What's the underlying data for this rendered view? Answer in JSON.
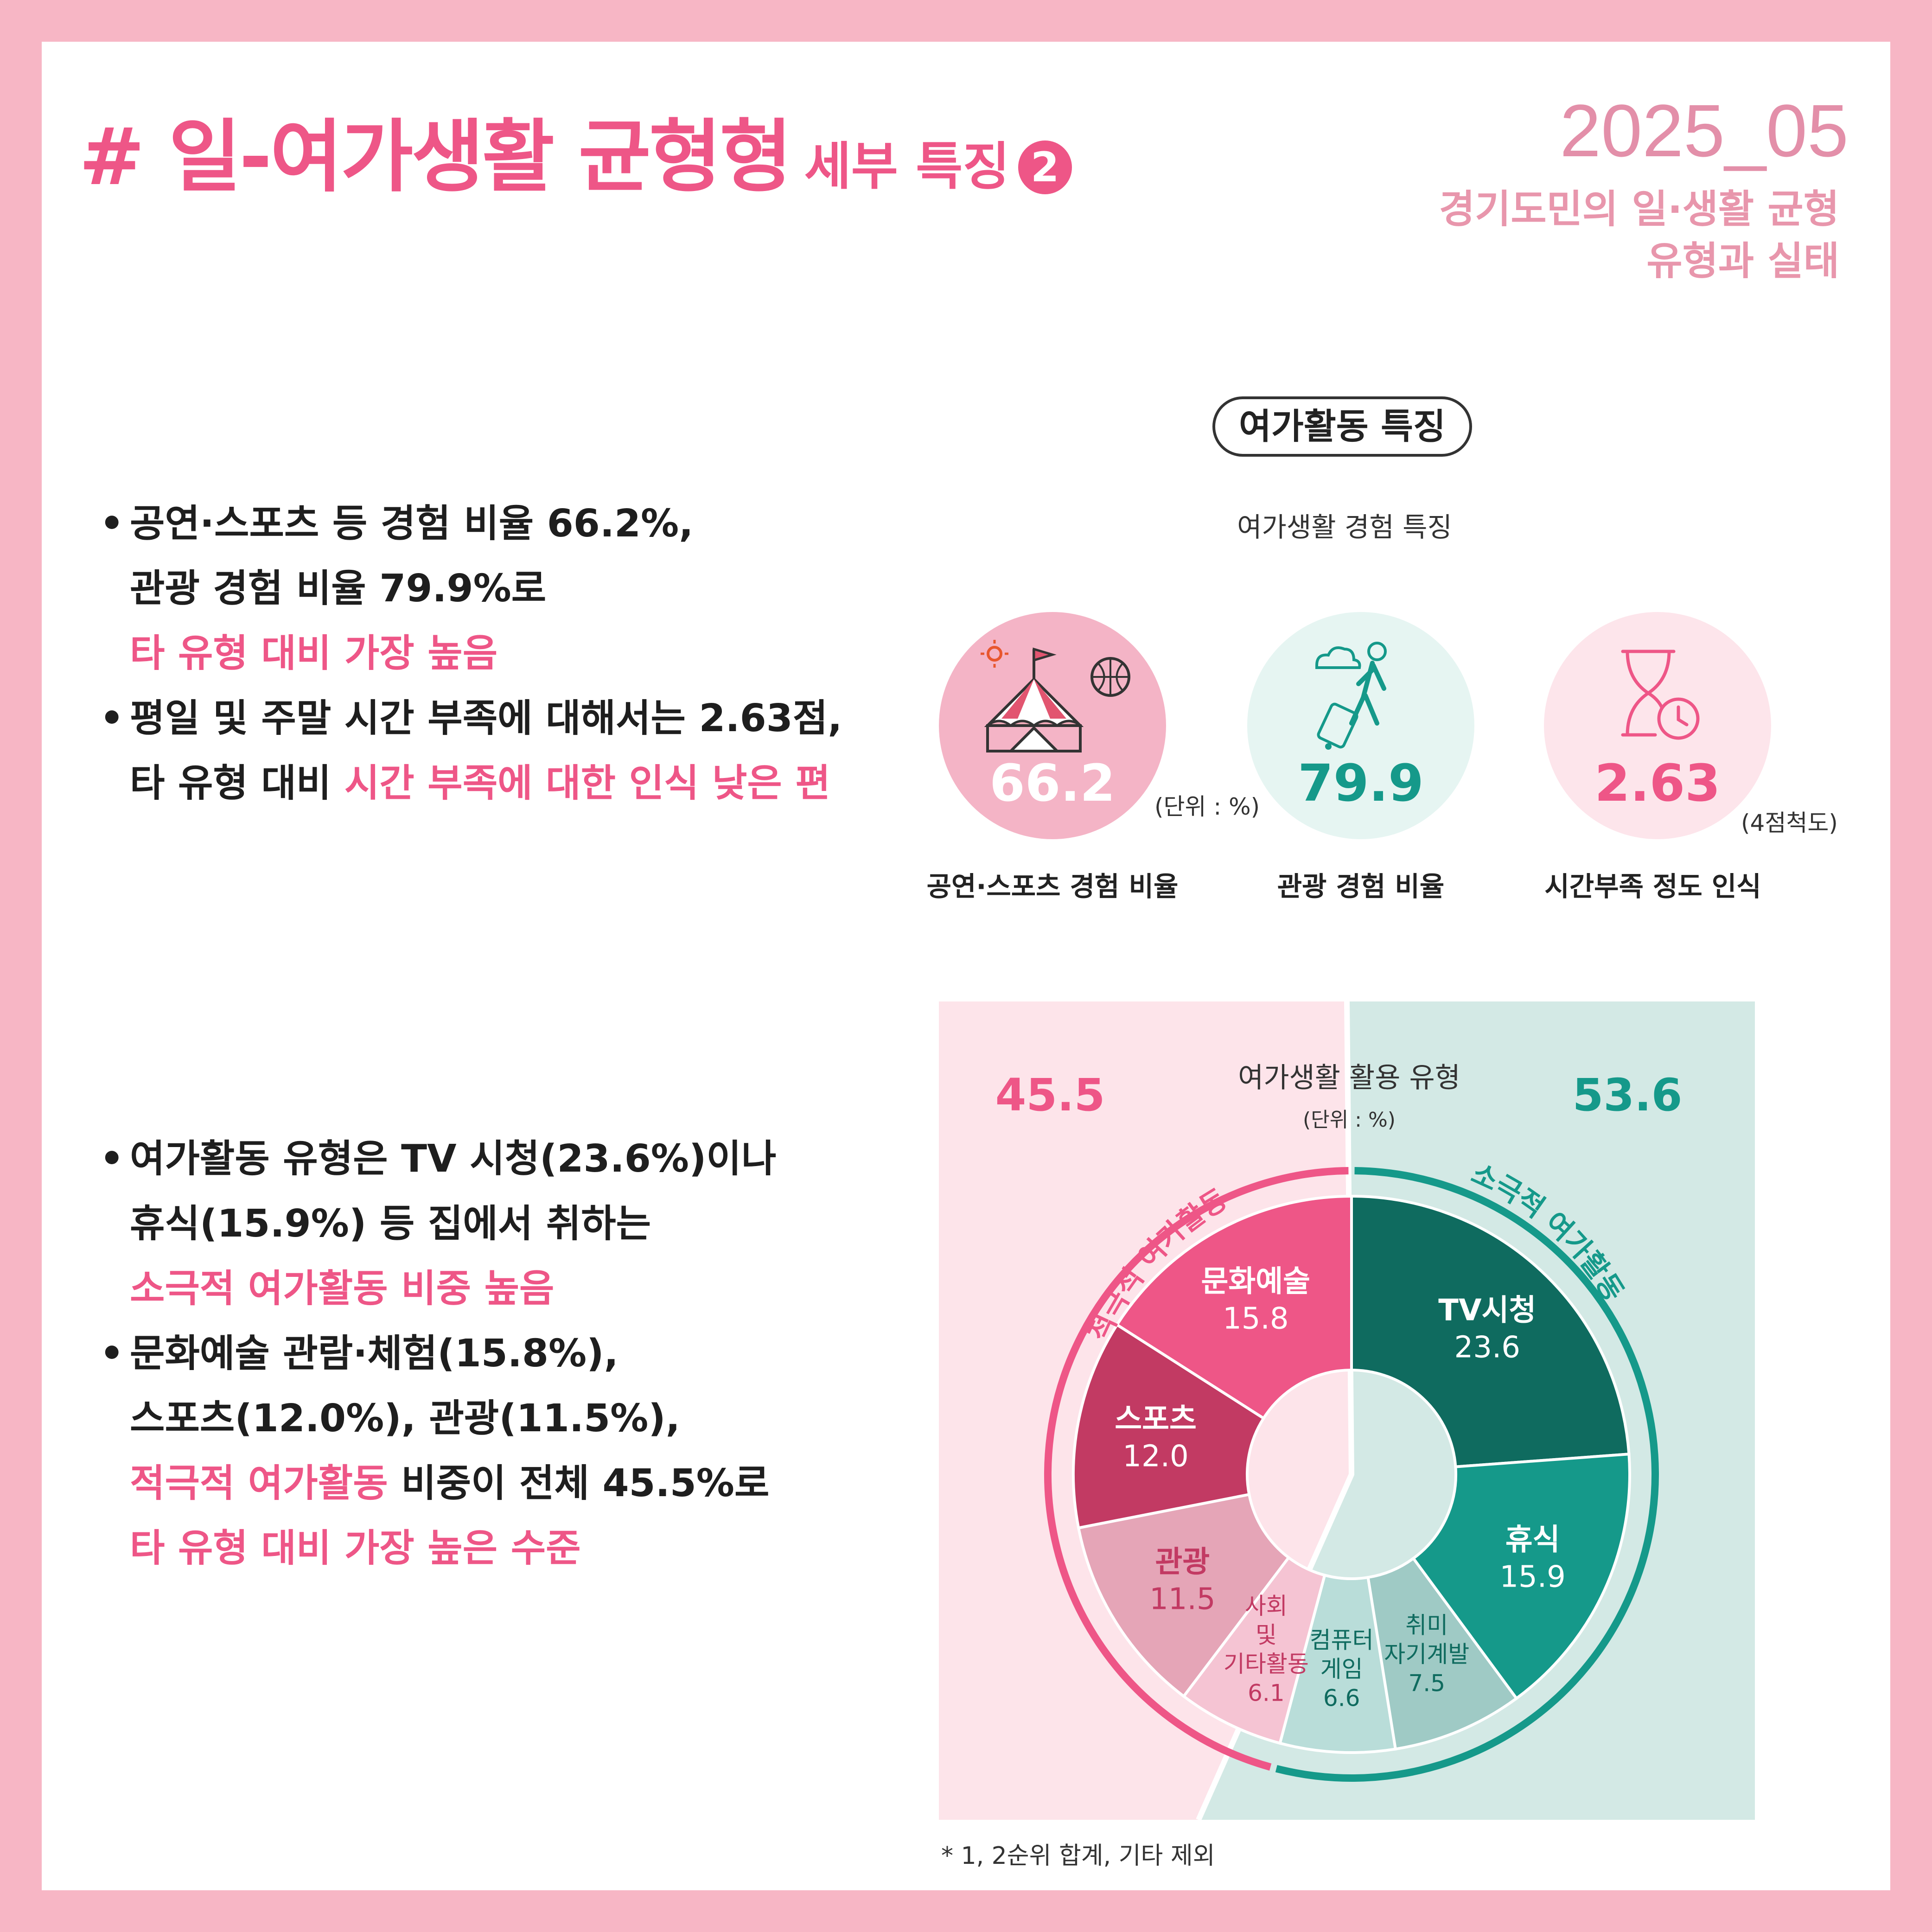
{
  "header": {
    "title_main": "# 일-여가생활 균형형",
    "title_sub": "세부 특징",
    "title_number": "2",
    "issue": "2025_05",
    "report_line1": "경기도민의 일·생활 균형",
    "report_line2": "유형과 실태"
  },
  "bullets_top": [
    {
      "l1": "공연·스포츠 등 경험 비율 66.2%,",
      "l2": "관광 경험 비율 79.9%로",
      "l3": "타 유형 대비 가장 높음"
    },
    {
      "l1": "평일 및 주말 시간 부족에 대해서는 2.63점,",
      "l2a": "타 유형 대비 ",
      "l2b": "시간 부족에 대한 인식 낮은 편"
    }
  ],
  "bullets_bottom": [
    {
      "l1": "여가활동 유형은 TV 시청(23.6%)이나",
      "l2": "휴식(15.9%) 등 집에서 취하는",
      "l3": "소극적 여가활동 비중 높음"
    },
    {
      "l1": "문화예술 관람·체험(15.8%),",
      "l2": "스포츠(12.0%), 관광(11.5%),",
      "l3a": "적극적 여가활동",
      "l3b": " 비중이 전체 45.5%로",
      "l4": "타 유형 대비 가장 높은 수준"
    }
  ],
  "feature_badge": "여가활동 특징",
  "colors": {
    "pink": "#ee5687",
    "teal": "#15998a",
    "dark_teal": "#0f6b5f",
    "magenta": "#c23a63"
  },
  "chart_data": [
    {
      "type": "bar",
      "title": "여가생활 경험 특징",
      "categories": [
        "공연·스포츠 경험 비율",
        "관광 경험 비율",
        "시간부족 정도 인식"
      ],
      "values": [
        66.2,
        79.9,
        2.63
      ],
      "value_labels": [
        "66.2",
        "79.9",
        "2.63"
      ],
      "units": [
        "(단위 : %)",
        "(4점척도)"
      ],
      "icons": [
        "circus-tent-icon",
        "traveler-luggage-icon",
        "hourglass-clock-icon"
      ]
    },
    {
      "type": "pie",
      "title": "여가생활 활용 유형",
      "unit": "(단위 : %)",
      "groups": [
        {
          "name": "적극적 여가활동",
          "total": "45.5"
        },
        {
          "name": "소극적 여가활동",
          "total": "53.6"
        }
      ],
      "slices": [
        {
          "label": "TV시청",
          "value": 23.6,
          "value_label": "23.6",
          "group": "소극적 여가활동",
          "color": "#0f6b5f"
        },
        {
          "label": "휴식",
          "value": 15.9,
          "value_label": "15.9",
          "group": "소극적 여가활동",
          "color": "#15998a"
        },
        {
          "label": "취미 자기계발",
          "value": 7.5,
          "value_label": "7.5",
          "group": "소극적 여가활동",
          "color": "#9fcac5"
        },
        {
          "label": "컴퓨터 게임",
          "value": 6.6,
          "value_label": "6.6",
          "group": "소극적 여가활동",
          "color": "#b9ddd9"
        },
        {
          "label": "사회 및 기타활동",
          "value": 6.1,
          "value_label": "6.1",
          "group": "적극적 여가활동",
          "color": "#f5c4d3"
        },
        {
          "label": "관광",
          "value": 11.5,
          "value_label": "11.5",
          "group": "적극적 여가활동",
          "color": "#e5a5b7"
        },
        {
          "label": "스포츠",
          "value": 12.0,
          "value_label": "12.0",
          "group": "적극적 여가활동",
          "color": "#c23a63"
        },
        {
          "label": "문화예술",
          "value": 15.8,
          "value_label": "15.8",
          "group": "적극적 여가활동",
          "color": "#ee5687"
        }
      ],
      "footnote": "* 1, 2순위 합계, 기타 제외"
    }
  ]
}
